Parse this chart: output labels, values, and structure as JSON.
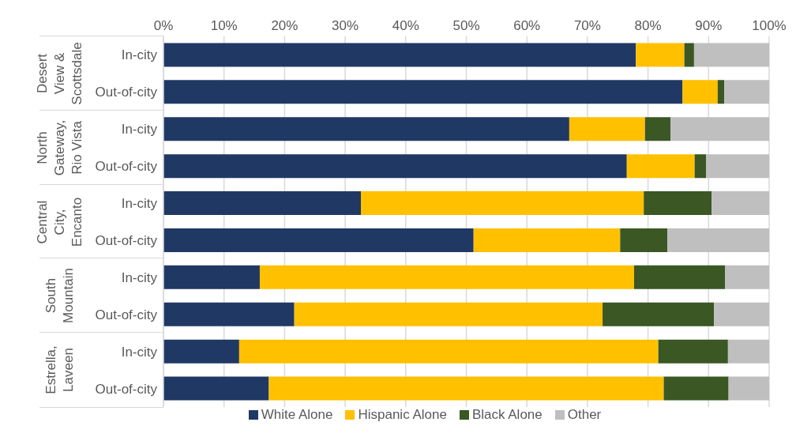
{
  "chart_data": {
    "type": "bar",
    "orientation": "horizontal",
    "stacked": true,
    "categories": [
      "In-city",
      "Out-of-city",
      "In-city",
      "Out-of-city",
      "In-city",
      "Out-of-city",
      "In-city",
      "Out-of-city",
      "In-city",
      "Out-of-city"
    ],
    "annotations": [
      "Desert View & Scottsdale",
      "North Gateway, Rio Vista",
      "Central City, Encanto",
      "South Mountain",
      "Estrella, Laveen"
    ],
    "series": [
      {
        "name": "White Alone",
        "color": "#203864",
        "values": [
          78,
          85.7,
          67,
          76.5,
          32.6,
          51.2,
          15.9,
          21.6,
          12.5,
          17.4
        ]
      },
      {
        "name": "Hispanic Alone",
        "color": "#ffc000",
        "values": [
          8,
          5.8,
          12.5,
          11.2,
          46.7,
          24.2,
          61.8,
          50.9,
          69.2,
          65.2
        ]
      },
      {
        "name": "Black Alone",
        "color": "#3a5724",
        "values": [
          1.6,
          1.1,
          4.2,
          1.9,
          11.2,
          7.8,
          15,
          18.4,
          11.5,
          10.7
        ]
      },
      {
        "name": "Other",
        "color": "#bfbfbf",
        "values": [
          12.4,
          7.4,
          16.3,
          10.4,
          9.5,
          16.8,
          7.3,
          9.1,
          6.8,
          6.7
        ]
      }
    ],
    "xlim": [
      0,
      100
    ],
    "xticks": [
      {
        "value": 0,
        "label": "0%"
      },
      {
        "value": 10,
        "label": "10%"
      },
      {
        "value": 20,
        "label": "20%"
      },
      {
        "value": 30,
        "label": "30%"
      },
      {
        "value": 40,
        "label": "40%"
      },
      {
        "value": 50,
        "label": "50%"
      },
      {
        "value": 60,
        "label": "60%"
      },
      {
        "value": 70,
        "label": "70%"
      },
      {
        "value": 80,
        "label": "80%"
      },
      {
        "value": 90,
        "label": "90%"
      },
      {
        "value": 100,
        "label": "100%"
      }
    ],
    "grid": "x",
    "legend": "bottom"
  }
}
